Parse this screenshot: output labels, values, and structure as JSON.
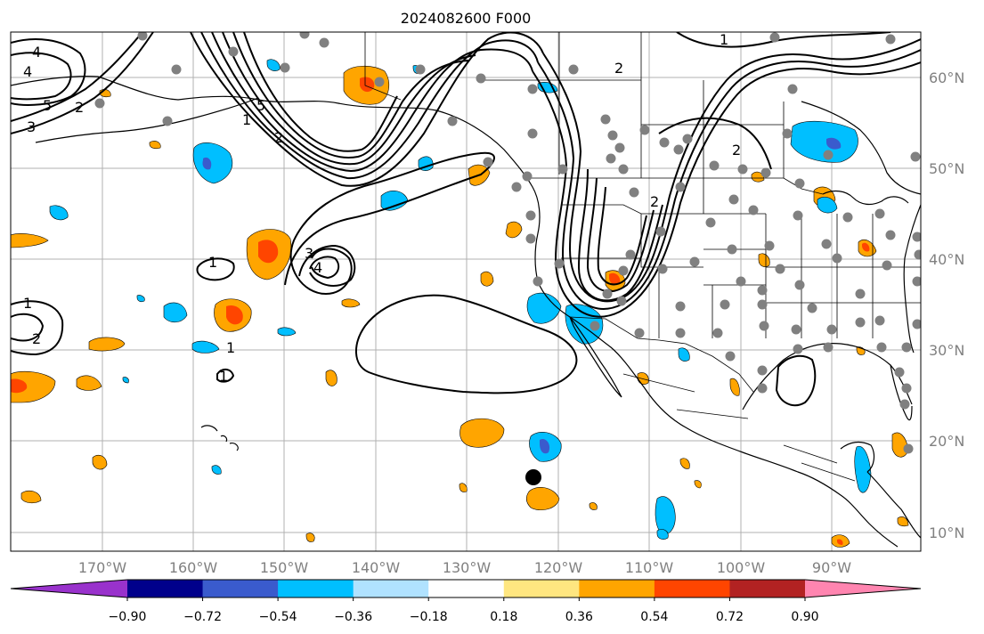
{
  "title": "2024082600 F000",
  "map": {
    "lon_labels": [
      "170°W",
      "160°W",
      "150°W",
      "140°W",
      "130°W",
      "120°W",
      "110°W",
      "100°W",
      "90°W"
    ],
    "lat_labels": [
      "60°N",
      "50°N",
      "40°N",
      "30°N",
      "20°N",
      "10°N"
    ],
    "contour_labels": [
      "4",
      "4",
      "5",
      "2",
      "3",
      "5",
      "2",
      "1",
      "1",
      "2",
      "1",
      "3",
      "4",
      "2",
      "2",
      "1",
      "1",
      "2",
      "1"
    ],
    "colors": {
      "land_outline": "#000000",
      "grid": "#b0b0b0",
      "station_dot": "#808080",
      "marker": "#000000"
    }
  },
  "colorbar": {
    "ticks": [
      "−0.90",
      "−0.72",
      "−0.54",
      "−0.36",
      "−0.18",
      "0.18",
      "0.36",
      "0.54",
      "0.72",
      "0.90"
    ],
    "colors": [
      "#9932cc",
      "#00008b",
      "#3a5bcd",
      "#00bfff",
      "#b0e2ff",
      "#ffffff",
      "#ffe680",
      "#ffa500",
      "#ff4500",
      "#b22222",
      "#ff85b0"
    ]
  }
}
